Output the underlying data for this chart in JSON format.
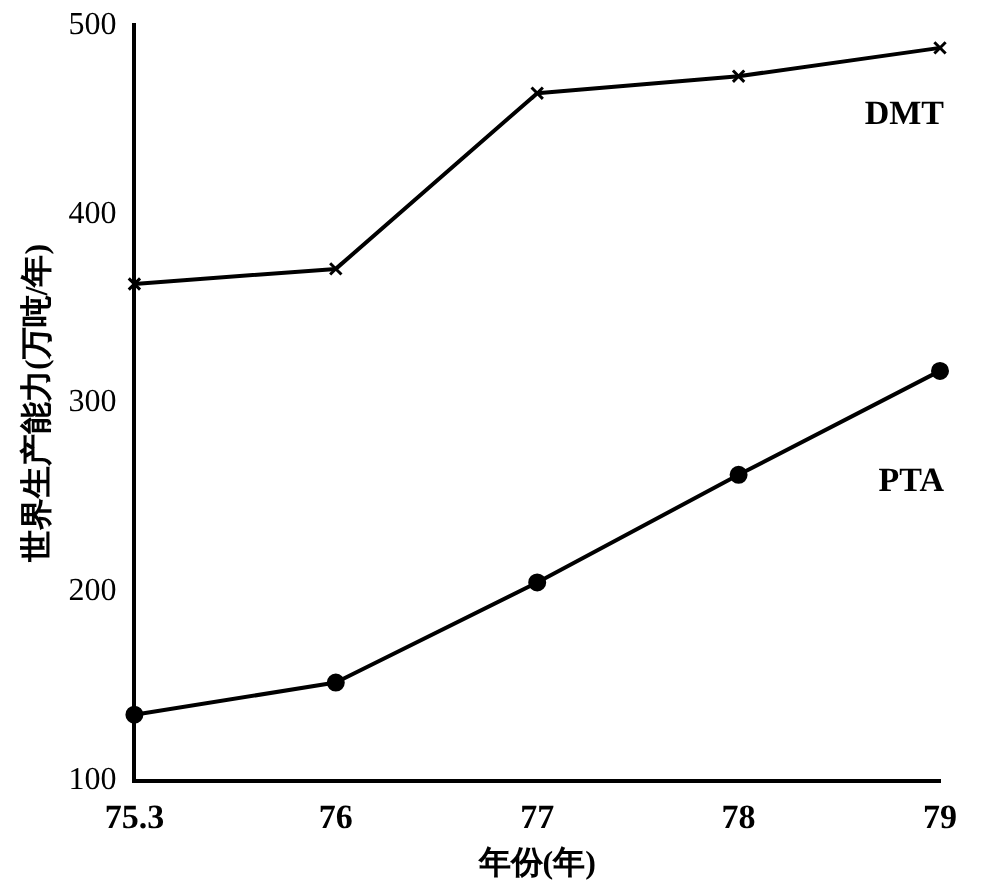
{
  "chart_data": {
    "type": "line",
    "xlabel": "年份(年)",
    "ylabel": "世界生产能力(万吨/年)",
    "categories": [
      "75.3",
      "76",
      "77",
      "78",
      "79"
    ],
    "series": [
      {
        "name": "DMT",
        "color": "#000000",
        "marker": "cross",
        "values": [
          363,
          371,
          464,
          473,
          488
        ]
      },
      {
        "name": "PTA",
        "color": "#000000",
        "marker": "circle",
        "values": [
          135,
          152,
          205,
          262,
          317
        ]
      }
    ],
    "ylim": [
      100,
      500
    ],
    "yticks": [
      100,
      200,
      300,
      400,
      500
    ],
    "grid": false,
    "legend": false,
    "line_style": "solid"
  }
}
